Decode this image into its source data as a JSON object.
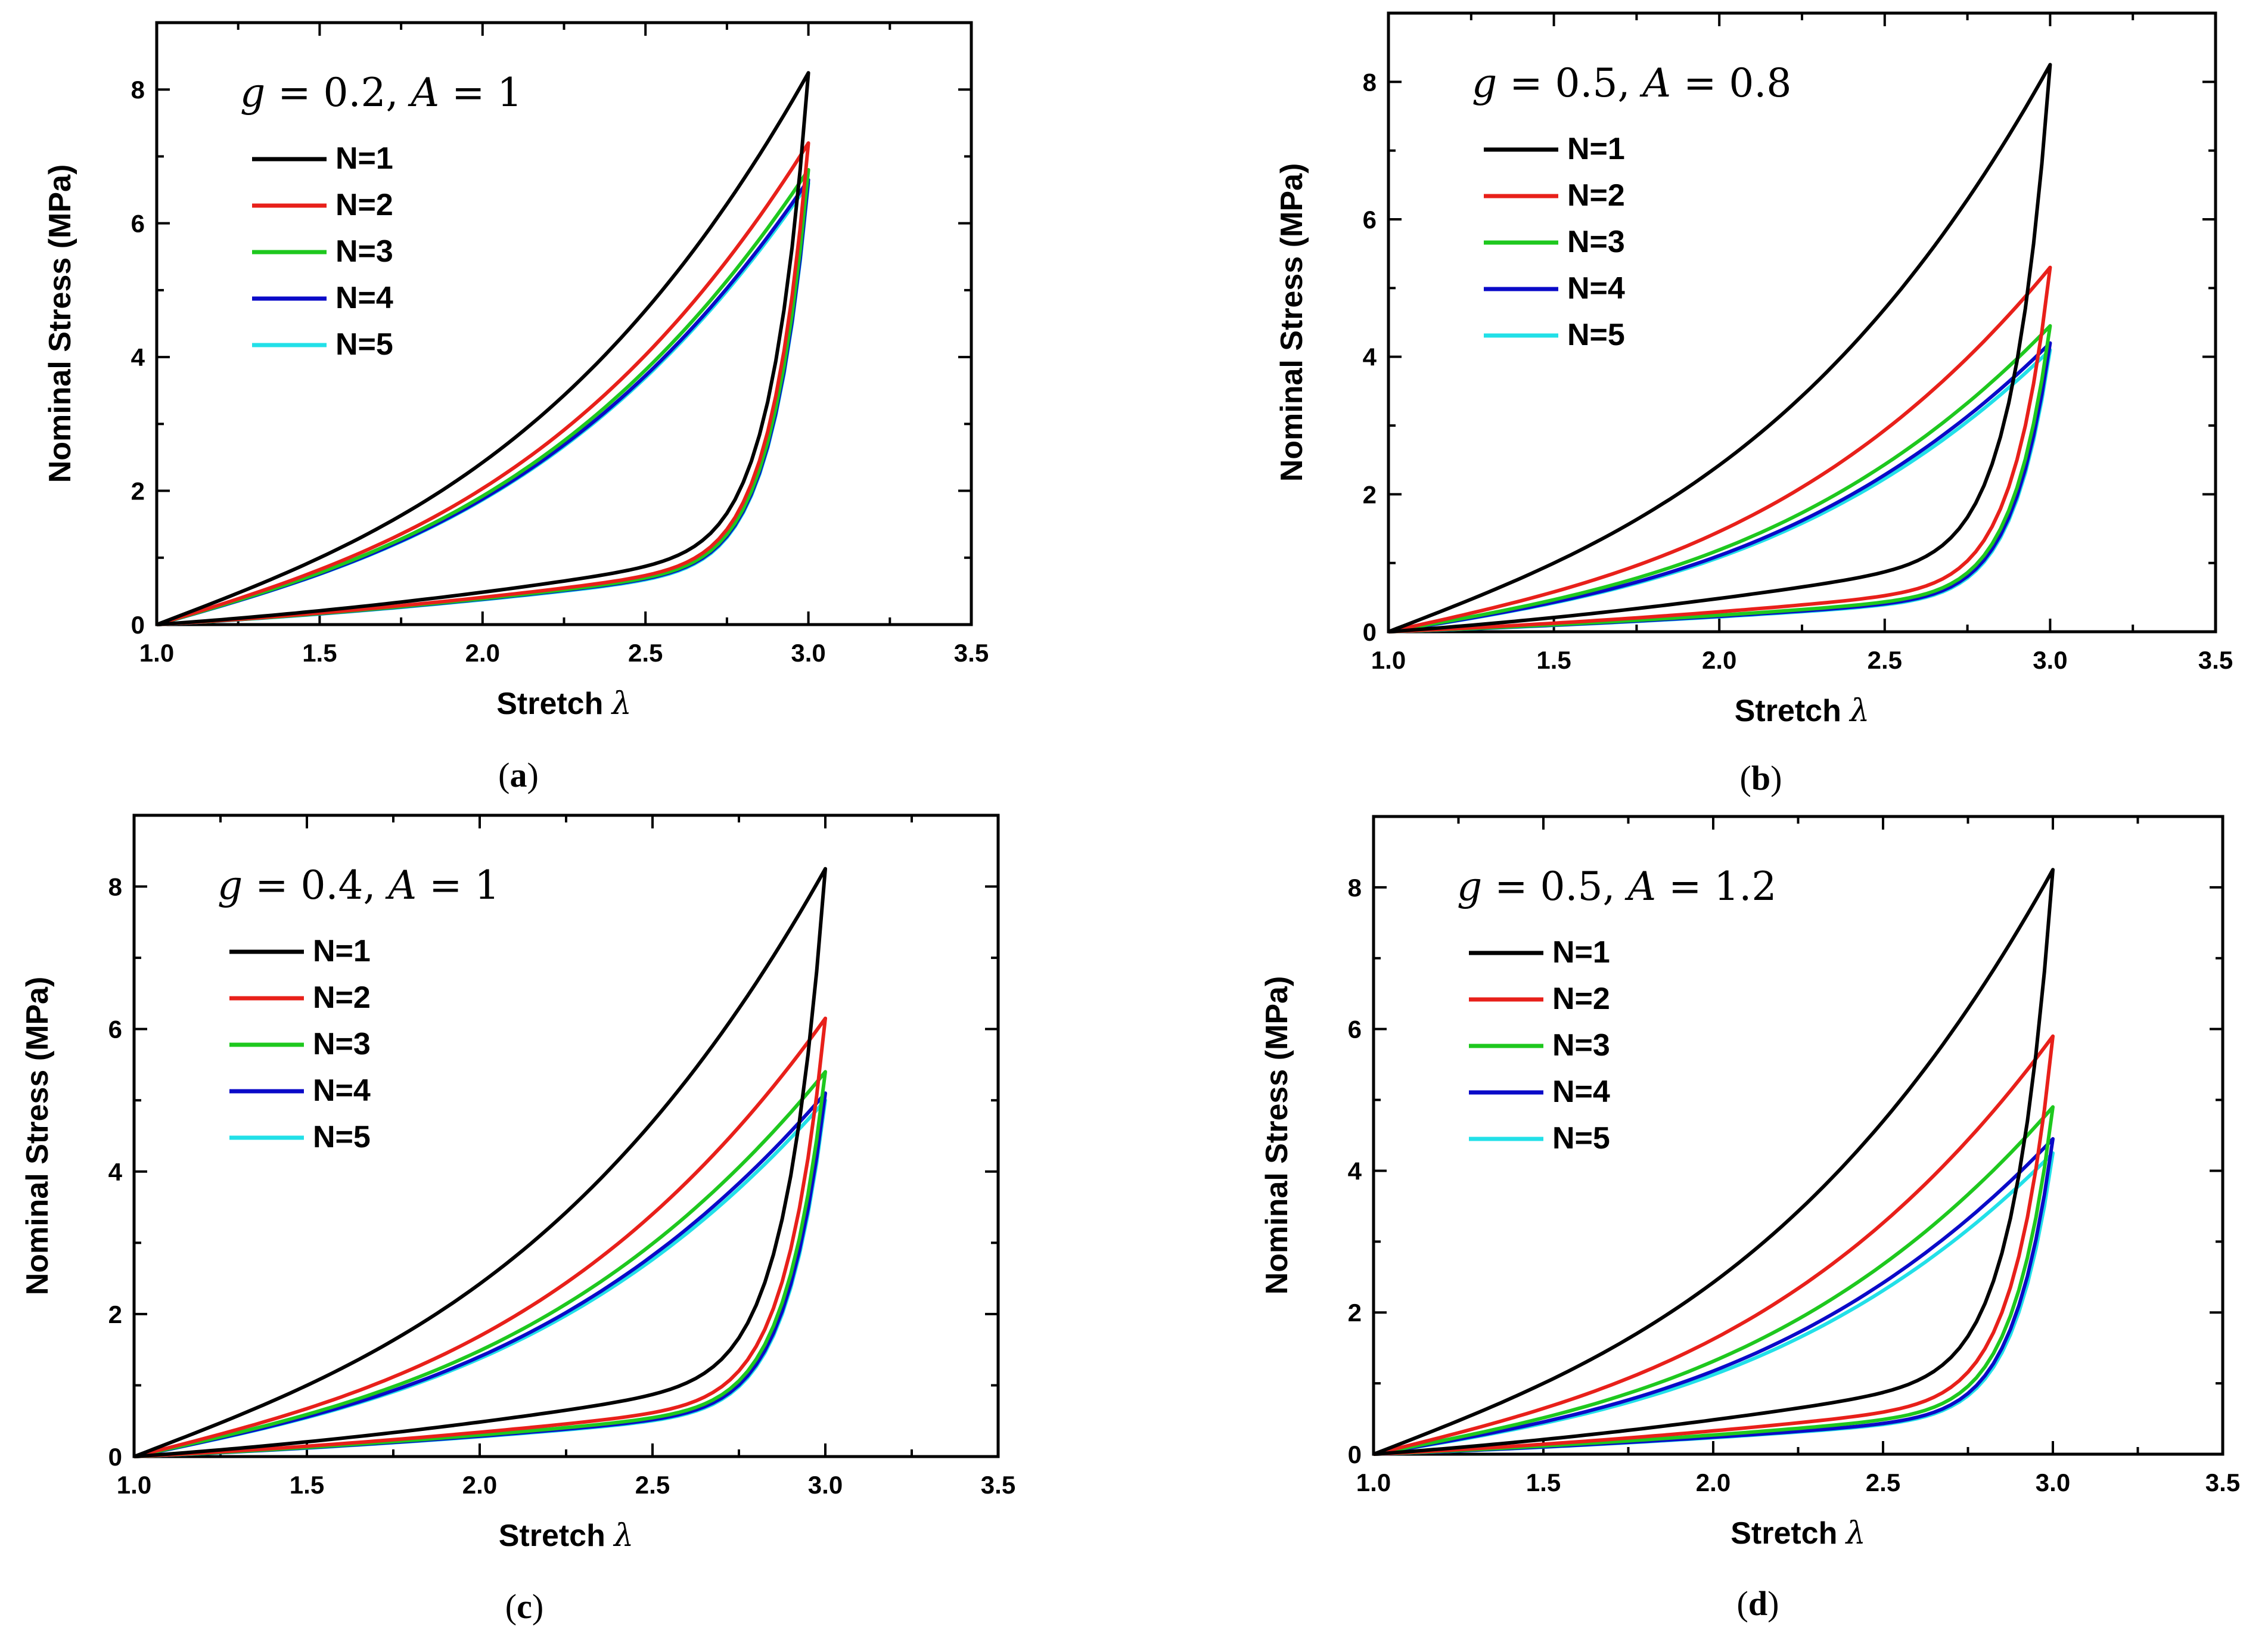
{
  "colors": {
    "N1": "#000000",
    "N2": "#e8201a",
    "N3": "#1ec81e",
    "N4": "#0a0ac8",
    "N5": "#22e0e8"
  },
  "chart_data": [
    {
      "type": "line",
      "panel": "a",
      "panel_label": "a",
      "param": {
        "g_sym": "g",
        "g_val": " = 0.2, ",
        "A_sym": "A",
        "A_val": " = 1"
      },
      "xlabel": "Stretch ",
      "xlabel_symbol": "λ",
      "ylabel": "Nominal Stress (MPa)",
      "xlim": [
        1.0,
        3.5
      ],
      "ylim": [
        0,
        9
      ],
      "xticks": [
        "1.0",
        "1.5",
        "2.0",
        "2.5",
        "3.0",
        "3.5"
      ],
      "yticks": [
        "0",
        "2",
        "4",
        "6",
        "8"
      ],
      "legend_placement": "top-left",
      "series": [
        {
          "name": "N=1",
          "cycle": 1,
          "peak": 8.25,
          "load_curv": 0.55,
          "unload_h": 1.25
        },
        {
          "name": "N=2",
          "cycle": 2,
          "peak": 7.2,
          "load_curv": 0.58,
          "unload_h": 1.05
        },
        {
          "name": "N=3",
          "cycle": 3,
          "peak": 6.8,
          "load_curv": 0.58,
          "unload_h": 1.0
        },
        {
          "name": "N=4",
          "cycle": 4,
          "peak": 6.65,
          "load_curv": 0.58,
          "unload_h": 0.98
        },
        {
          "name": "N=5",
          "cycle": 5,
          "peak": 6.6,
          "load_curv": 0.58,
          "unload_h": 0.96
        }
      ]
    },
    {
      "type": "line",
      "panel": "b",
      "panel_label": "b",
      "param": {
        "g_sym": "g",
        "g_val": " = 0.5, ",
        "A_sym": "A",
        "A_val": " = 0.8"
      },
      "xlabel": "Stretch ",
      "xlabel_symbol": "λ",
      "ylabel": "Nominal Stress (MPa)",
      "xlim": [
        1.0,
        3.5
      ],
      "ylim": [
        0,
        9
      ],
      "xticks": [
        "1.0",
        "1.5",
        "2.0",
        "2.5",
        "3.0",
        "3.5"
      ],
      "yticks": [
        "0",
        "2",
        "4",
        "6",
        "8"
      ],
      "legend_placement": "top-left",
      "series": [
        {
          "name": "N=1",
          "cycle": 1,
          "peak": 8.25,
          "load_curv": 0.55,
          "unload_h": 1.25
        },
        {
          "name": "N=2",
          "cycle": 2,
          "peak": 5.3,
          "load_curv": 0.6,
          "unload_h": 0.75
        },
        {
          "name": "N=3",
          "cycle": 3,
          "peak": 4.45,
          "load_curv": 0.62,
          "unload_h": 0.62
        },
        {
          "name": "N=4",
          "cycle": 4,
          "peak": 4.2,
          "load_curv": 0.63,
          "unload_h": 0.58
        },
        {
          "name": "N=5",
          "cycle": 5,
          "peak": 4.1,
          "load_curv": 0.63,
          "unload_h": 0.56
        }
      ]
    },
    {
      "type": "line",
      "panel": "c",
      "panel_label": "c",
      "param": {
        "g_sym": "g",
        "g_val": " = 0.4, ",
        "A_sym": "A",
        "A_val": " = 1"
      },
      "xlabel": "Stretch ",
      "xlabel_symbol": "λ",
      "ylabel": "Nominal Stress (MPa)",
      "xlim": [
        1.0,
        3.5
      ],
      "ylim": [
        0,
        9
      ],
      "xticks": [
        "1.0",
        "1.5",
        "2.0",
        "2.5",
        "3.0",
        "3.5"
      ],
      "yticks": [
        "0",
        "2",
        "4",
        "6",
        "8"
      ],
      "legend_placement": "top-left",
      "series": [
        {
          "name": "N=1",
          "cycle": 1,
          "peak": 8.25,
          "load_curv": 0.55,
          "unload_h": 1.25
        },
        {
          "name": "N=2",
          "cycle": 2,
          "peak": 6.15,
          "load_curv": 0.6,
          "unload_h": 0.88
        },
        {
          "name": "N=3",
          "cycle": 3,
          "peak": 5.4,
          "load_curv": 0.6,
          "unload_h": 0.78
        },
        {
          "name": "N=4",
          "cycle": 4,
          "peak": 5.1,
          "load_curv": 0.6,
          "unload_h": 0.74
        },
        {
          "name": "N=5",
          "cycle": 5,
          "peak": 5.0,
          "load_curv": 0.6,
          "unload_h": 0.72
        }
      ]
    },
    {
      "type": "line",
      "panel": "d",
      "panel_label": "d",
      "param": {
        "g_sym": "g",
        "g_val": " = 0.5, ",
        "A_sym": "A",
        "A_val": " = 1.2"
      },
      "xlabel": "Stretch ",
      "xlabel_symbol": "λ",
      "ylabel": "Nominal Stress (MPa)",
      "xlim": [
        1.0,
        3.5
      ],
      "ylim": [
        0,
        9
      ],
      "xticks": [
        "1.0",
        "1.5",
        "2.0",
        "2.5",
        "3.0",
        "3.5"
      ],
      "yticks": [
        "0",
        "2",
        "4",
        "6",
        "8"
      ],
      "legend_placement": "top-left",
      "series": [
        {
          "name": "N=1",
          "cycle": 1,
          "peak": 8.25,
          "load_curv": 0.55,
          "unload_h": 1.25
        },
        {
          "name": "N=2",
          "cycle": 2,
          "peak": 5.9,
          "load_curv": 0.6,
          "unload_h": 0.85
        },
        {
          "name": "N=3",
          "cycle": 3,
          "peak": 4.9,
          "load_curv": 0.62,
          "unload_h": 0.7
        },
        {
          "name": "N=4",
          "cycle": 4,
          "peak": 4.45,
          "load_curv": 0.63,
          "unload_h": 0.62
        },
        {
          "name": "N=5",
          "cycle": 5,
          "peak": 4.25,
          "load_curv": 0.63,
          "unload_h": 0.6
        }
      ]
    }
  ]
}
